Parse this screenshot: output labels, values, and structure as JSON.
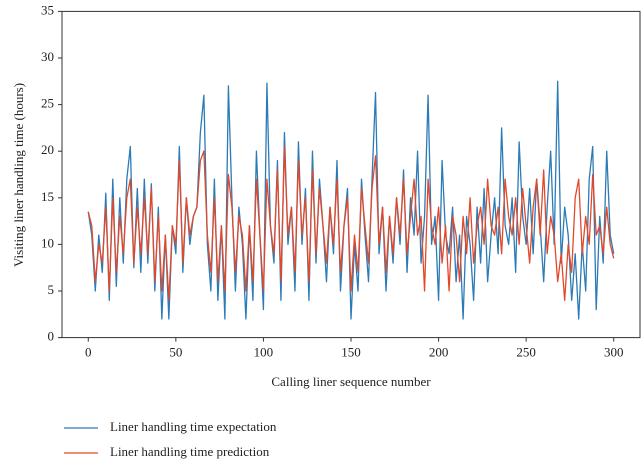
{
  "chart_data": {
    "type": "line",
    "xlabel": "Calling liner sequence number",
    "ylabel": "Visiting liner handling time (hours)",
    "xlim": [
      -15,
      315
    ],
    "xticks": [
      0,
      50,
      100,
      150,
      200,
      250,
      300
    ],
    "ylim": [
      0,
      35
    ],
    "yticks": [
      0,
      5,
      10,
      15,
      20,
      25,
      30,
      35
    ],
    "grid": false,
    "legend": "bottom",
    "x": [
      0,
      2,
      4,
      6,
      8,
      10,
      12,
      14,
      16,
      18,
      20,
      22,
      24,
      26,
      28,
      30,
      32,
      34,
      36,
      38,
      40,
      42,
      44,
      46,
      48,
      50,
      52,
      54,
      56,
      58,
      60,
      62,
      64,
      66,
      68,
      70,
      72,
      74,
      76,
      78,
      80,
      82,
      84,
      86,
      88,
      90,
      92,
      94,
      96,
      98,
      100,
      102,
      104,
      106,
      108,
      110,
      112,
      114,
      116,
      118,
      120,
      122,
      124,
      126,
      128,
      130,
      132,
      134,
      136,
      138,
      140,
      142,
      144,
      146,
      148,
      150,
      152,
      154,
      156,
      158,
      160,
      162,
      164,
      166,
      168,
      170,
      172,
      174,
      176,
      178,
      180,
      182,
      184,
      186,
      188,
      190,
      192,
      194,
      196,
      198,
      200,
      202,
      204,
      206,
      208,
      210,
      212,
      214,
      216,
      218,
      220,
      222,
      224,
      226,
      228,
      230,
      232,
      234,
      236,
      238,
      240,
      242,
      244,
      246,
      248,
      250,
      252,
      254,
      256,
      258,
      260,
      262,
      264,
      266,
      268,
      270,
      272,
      274,
      276,
      278,
      280,
      282,
      284,
      286,
      288,
      290,
      292,
      294,
      296,
      298,
      300
    ],
    "series": [
      {
        "name": "Liner handling time expectation",
        "color": "#2b7bb6",
        "values": [
          13.5,
          11,
          5,
          11,
          7,
          15.5,
          4,
          17,
          5.5,
          15,
          8,
          17,
          20.5,
          7.5,
          16,
          7,
          17,
          8,
          16.5,
          5,
          14,
          2,
          11,
          2,
          12,
          9,
          20.5,
          7,
          15,
          10,
          13,
          14,
          22,
          26,
          10,
          5,
          17,
          4,
          12,
          2,
          27,
          15,
          5,
          14,
          10,
          2,
          12,
          4,
          20,
          11,
          3,
          27.3,
          12,
          8,
          19,
          4,
          22,
          10,
          14,
          5,
          21,
          10,
          16,
          4,
          20,
          8,
          17,
          12,
          6,
          14,
          9,
          19,
          5,
          12,
          16,
          2,
          10,
          5,
          17,
          11,
          6,
          17,
          26.3,
          9,
          14,
          5,
          13,
          8,
          15,
          10,
          18,
          7,
          15,
          11,
          20,
          8,
          13,
          26,
          10,
          13,
          4,
          19,
          11,
          9,
          14,
          6,
          11,
          2,
          13,
          10,
          4,
          14,
          8,
          16,
          6,
          11,
          15,
          9,
          22.5,
          12,
          10,
          15,
          7,
          21,
          13,
          10,
          16,
          9,
          17,
          12,
          6,
          14,
          20,
          10,
          27.5,
          8,
          14,
          11,
          4,
          9,
          2,
          10,
          5,
          17,
          20.5,
          3,
          13,
          8,
          20,
          11,
          9
        ]
      },
      {
        "name": "Liner handling time prediction",
        "color": "#e2492b",
        "values": [
          13.5,
          12,
          6,
          10,
          8,
          14,
          5,
          15,
          7,
          13,
          9,
          15,
          17,
          8,
          14,
          9,
          15,
          9,
          16,
          6,
          13,
          5,
          11,
          4,
          12,
          10,
          19,
          8,
          15,
          11,
          13,
          14,
          19,
          20,
          11,
          7,
          15,
          6,
          12,
          5,
          17.5,
          14,
          7,
          13,
          11,
          5,
          12,
          6,
          17,
          11,
          5,
          17,
          12,
          9,
          18,
          6,
          20.5,
          11,
          14,
          7,
          19,
          11,
          15,
          6,
          18,
          9,
          16,
          12,
          8,
          14,
          10,
          17,
          7,
          12,
          15,
          5,
          11,
          7,
          16,
          12,
          8,
          16,
          19.5,
          10,
          14,
          7,
          13,
          9,
          15,
          11,
          17,
          9,
          13,
          17,
          11,
          13,
          5,
          17,
          12,
          10,
          14,
          8,
          12,
          5,
          13,
          11,
          6,
          13,
          9,
          15,
          8,
          12,
          14,
          10,
          17,
          12,
          11,
          14,
          9,
          17,
          13,
          11,
          15,
          10,
          16,
          12,
          8,
          14,
          17,
          11,
          18,
          9,
          13,
          11,
          6,
          9,
          4,
          10,
          7,
          15,
          17,
          9,
          13,
          10,
          17.5,
          11,
          12,
          9,
          14,
          10,
          8.5
        ]
      }
    ]
  }
}
